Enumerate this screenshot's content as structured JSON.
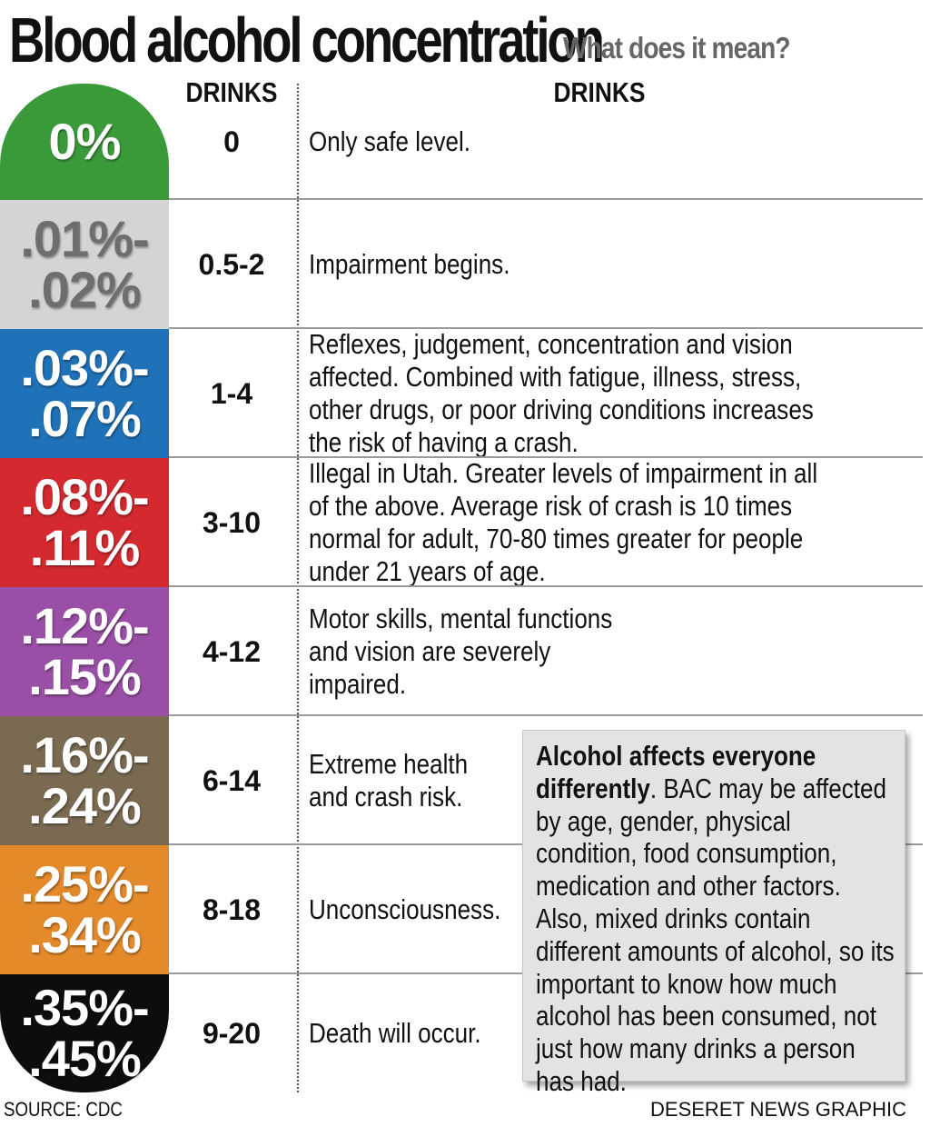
{
  "title": "Blood alcohol concentration",
  "subtitle": "What does it mean?",
  "columns": {
    "drinks": "DRINKS",
    "effects": "DRINKS"
  },
  "rows": [
    {
      "bac_line1": "0%",
      "bac_line2": "",
      "drinks": "0",
      "description": "Only safe level.",
      "color": "#3a9a3a"
    },
    {
      "bac_line1": ".01%-",
      "bac_line2": ".02%",
      "drinks": "0.5-2",
      "description": "Impairment begins.",
      "color": "#d4d4d4"
    },
    {
      "bac_line1": ".03%-",
      "bac_line2": ".07%",
      "drinks": "1-4",
      "description": "Reflexes, judgement, concentration and vision affected. Combined with fatigue, illness, stress, other drugs, or poor driving conditions increases the risk of having a crash.",
      "color": "#1f72b8"
    },
    {
      "bac_line1": ".08%-",
      "bac_line2": ".11%",
      "drinks": "3-10",
      "description": "Illegal in Utah. Greater levels of impairment in all of the above. Average risk of crash is 10 times normal for adult, 70-80 times greater for people under 21 years of age.",
      "color": "#d42a2f"
    },
    {
      "bac_line1": ".12%-",
      "bac_line2": ".15%",
      "drinks": "4-12",
      "description": "Motor skills, mental functions and vision are severely impaired.",
      "color": "#9a4fa6"
    },
    {
      "bac_line1": ".16%-",
      "bac_line2": ".24%",
      "drinks": "6-14",
      "description": "Extreme health and crash risk.",
      "color": "#7a6a52"
    },
    {
      "bac_line1": ".25%-",
      "bac_line2": ".34%",
      "drinks": "8-18",
      "description": "Unconsciousness.",
      "color": "#e48a2a"
    },
    {
      "bac_line1": ".35%-",
      "bac_line2": ".45%",
      "drinks": "9-20",
      "description": "Death will occur.",
      "color": "#0d0d0d"
    }
  ],
  "note": {
    "bold": "Alcohol affects everyone differently",
    "body": ". BAC may be affected by age, gender, physical condition, food consumption, medication and other factors. Also, mixed drinks contain different amounts of alcohol, so its important to know how much alcohol has been consumed, not just how many drinks a person has had."
  },
  "footer": {
    "source": "SOURCE: CDC",
    "credit": "DESERET NEWS GRAPHIC"
  }
}
